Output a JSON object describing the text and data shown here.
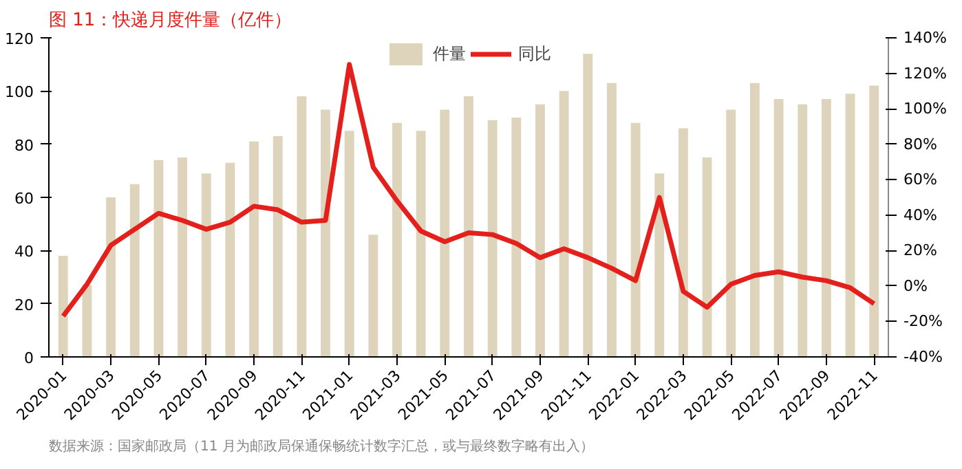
{
  "chart_data": {
    "type": "bar",
    "title": "图 11：快递月度件量（亿件）",
    "categories": [
      "2020-01",
      null,
      "2020-03",
      null,
      "2020-05",
      null,
      "2020-07",
      null,
      "2020-09",
      null,
      "2020-11",
      null,
      "2021-01",
      null,
      "2021-03",
      null,
      "2021-05",
      null,
      "2021-07",
      null,
      "2021-09",
      null,
      "2021-11",
      null,
      "2022-01",
      null,
      "2022-03",
      null,
      "2022-05",
      null,
      "2022-07",
      null,
      "2022-09",
      null,
      "2022-11"
    ],
    "series": [
      {
        "name": "件量",
        "color": "#ded4bb",
        "values": [
          38,
          27,
          60,
          65,
          74,
          75,
          69,
          73,
          81,
          83,
          98,
          93,
          85,
          46,
          88,
          85,
          93,
          98,
          89,
          90,
          95,
          100,
          114,
          103,
          88,
          69,
          86,
          75,
          93,
          103,
          97,
          95,
          97,
          99,
          102
        ]
      },
      {
        "name": "同比",
        "type": "line",
        "axis": "y2",
        "color": "#e3201b",
        "values": [
          -17,
          1,
          23,
          32,
          41,
          37,
          32,
          36,
          45,
          43,
          36,
          37,
          125,
          67,
          48,
          31,
          25,
          30,
          29,
          24,
          16,
          21,
          16,
          10,
          3,
          50,
          -3,
          -12,
          1,
          6,
          8,
          5,
          3,
          -1,
          -10
        ]
      }
    ],
    "ylim": [
      0,
      120
    ],
    "yticks": [
      0,
      20,
      40,
      60,
      80,
      100,
      120
    ],
    "y2lim": [
      -40,
      140
    ],
    "y2ticks": [
      {
        "value": -40,
        "label": "-40%"
      },
      {
        "value": -20,
        "label": "-20%"
      },
      {
        "value": 0,
        "label": "0%"
      },
      {
        "value": 20,
        "label": "20%"
      },
      {
        "value": 40,
        "label": "40%"
      },
      {
        "value": 60,
        "label": "60%"
      },
      {
        "value": 80,
        "label": "80%"
      },
      {
        "value": 100,
        "label": "100%"
      },
      {
        "value": 120,
        "label": "120%"
      },
      {
        "value": 140,
        "label": "140%"
      }
    ],
    "grid": false,
    "legend": "top",
    "annotations": [
      "数据来源：国家邮政局（11 月为邮政局保通保畅统计数字汇总，或与最终数字略有出入）"
    ]
  }
}
